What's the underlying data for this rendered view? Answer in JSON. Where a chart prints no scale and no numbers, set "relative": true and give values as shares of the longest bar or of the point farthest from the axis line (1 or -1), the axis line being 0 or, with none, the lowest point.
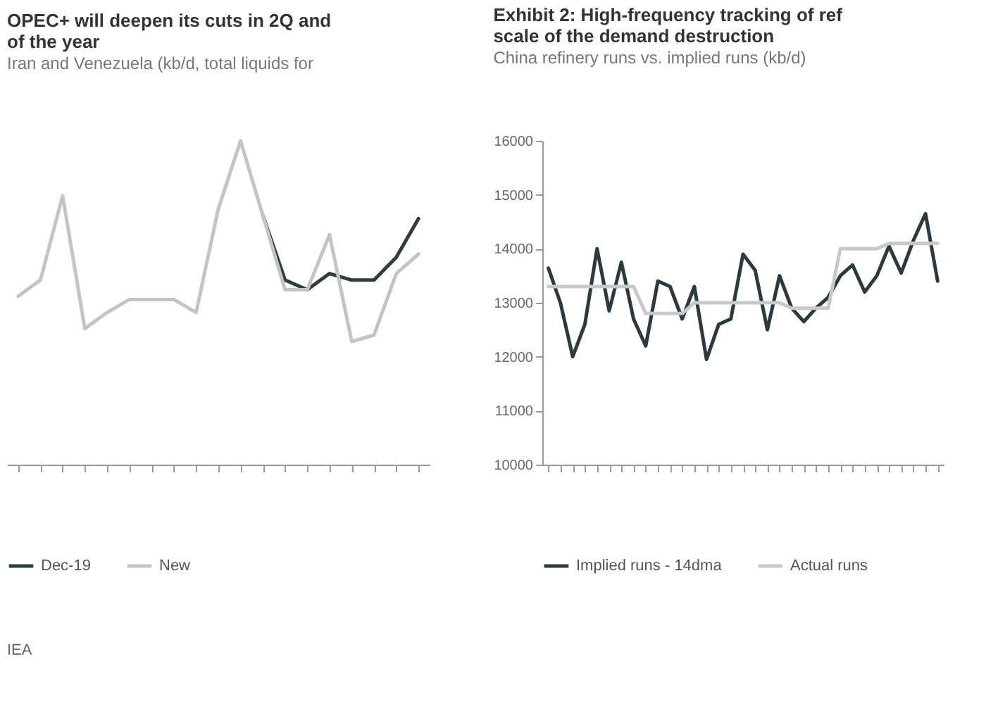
{
  "chart_data": [
    {
      "type": "line",
      "title": "OPEC+ will deepen its cuts in 2Q and\nof the year",
      "subtitle": "Iran and Venezuela (kb/d, total liquids for",
      "relative": true,
      "categories": [
        null,
        null,
        null,
        null,
        null,
        null,
        null,
        null,
        null,
        null,
        null,
        null,
        null,
        null,
        null,
        null,
        null,
        null,
        null
      ],
      "series": [
        {
          "name": "Dec-19",
          "color": "#2e3d42",
          "values": [
            null,
            null,
            null,
            null,
            null,
            null,
            null,
            null,
            null,
            null,
            null,
            0.77,
            0.57,
            0.54,
            0.59,
            0.57,
            0.57,
            0.64,
            0.76
          ]
        },
        {
          "name": "New",
          "color": "#c4c4c4",
          "values": [
            0.52,
            0.57,
            0.83,
            0.42,
            0.47,
            0.51,
            0.51,
            0.51,
            0.47,
            0.79,
            1.0,
            0.77,
            0.54,
            0.54,
            0.71,
            0.38,
            0.4,
            0.59,
            0.65
          ]
        }
      ],
      "legend": "bottom",
      "grid": false,
      "annotations": [
        "IEA"
      ]
    },
    {
      "type": "line",
      "title": "Exhibit 2: High-frequency tracking of ref\nscale of the demand destruction",
      "subtitle": "China refinery runs vs. implied runs (kb/d)",
      "categories": [
        null,
        null,
        null,
        null,
        null,
        null,
        null,
        null,
        null,
        null,
        null,
        null,
        null,
        null,
        null,
        null,
        null,
        null,
        null,
        null,
        null,
        null,
        null,
        null,
        null,
        null,
        null,
        null,
        null,
        null,
        null,
        null,
        null
      ],
      "ylim": [
        10000,
        16000
      ],
      "yticks": [
        10000,
        11000,
        12000,
        13000,
        14000,
        15000,
        16000
      ],
      "series": [
        {
          "name": "Implied runs - 14dma",
          "color": "#2b3a40",
          "values": [
            13640,
            12990,
            12000,
            12600,
            14000,
            12850,
            13750,
            12700,
            12200,
            13400,
            13300,
            12700,
            13300,
            11950,
            12600,
            12700,
            13900,
            13600,
            12500,
            13500,
            12900,
            12650,
            12900,
            13100,
            13500,
            13700,
            13200,
            13500,
            14050,
            13550,
            14150,
            14650,
            13400
          ]
        },
        {
          "name": "Actual runs",
          "color": "#c8c8c8",
          "values": [
            13300,
            13300,
            13300,
            13300,
            13300,
            13300,
            13300,
            13300,
            12800,
            12800,
            12800,
            12800,
            13000,
            13000,
            13000,
            13000,
            13000,
            13000,
            13000,
            13000,
            12900,
            12900,
            12900,
            12900,
            14000,
            14000,
            14000,
            14000,
            14100,
            14100,
            14100,
            14100,
            14100
          ]
        }
      ],
      "legend": "bottom",
      "grid": false
    }
  ]
}
